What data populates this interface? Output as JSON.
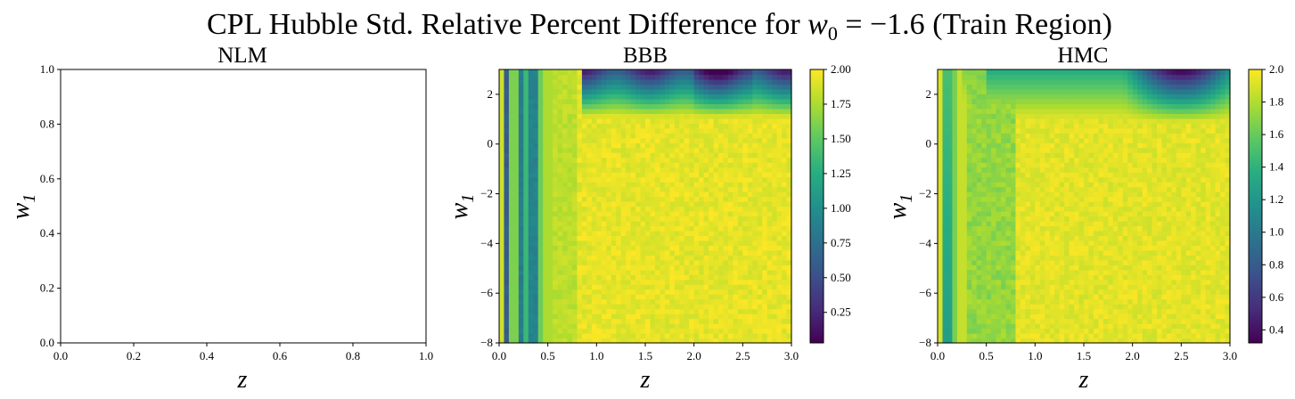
{
  "figure": {
    "title_prefix": "CPL Hubble Std. Relative Percent Difference for ",
    "title_math_w": "w",
    "title_math_sub": "0",
    "title_math_value": " = −1.6",
    "title_suffix": " (Train Region)"
  },
  "chart_data": [
    {
      "type": "heatmap",
      "title": "NLM",
      "xlabel": "z",
      "ylabel_main": "w",
      "ylabel_sub": "1",
      "xlim": [
        0.0,
        1.0
      ],
      "ylim": [
        0.0,
        1.0
      ],
      "xticks": [
        "0.0",
        "0.2",
        "0.4",
        "0.6",
        "0.8",
        "1.0"
      ],
      "yticks": [
        "0.0",
        "0.2",
        "0.4",
        "0.6",
        "0.8",
        "1.0"
      ],
      "empty": true
    },
    {
      "type": "heatmap",
      "title": "BBB",
      "xlabel": "z",
      "ylabel_main": "w",
      "ylabel_sub": "1",
      "xlim": [
        0.0,
        3.0
      ],
      "ylim": [
        -8,
        3
      ],
      "xticks": [
        "0.0",
        "0.5",
        "1.0",
        "1.5",
        "2.0",
        "2.5",
        "3.0"
      ],
      "yticks": [
        "−8",
        "−6",
        "−4",
        "−2",
        "0",
        "2"
      ],
      "colormap": "viridis",
      "colorbar_range": [
        0.03,
        2.0
      ],
      "colorbar_ticks": [
        "0.25",
        "0.50",
        "0.75",
        "1.00",
        "1.25",
        "1.50",
        "1.75",
        "2.00"
      ],
      "features": "vertical low-value stripes near z<0.4; dark dips along top edge (w1>1.5) for z>0.9"
    },
    {
      "type": "heatmap",
      "title": "HMC",
      "xlabel": "z",
      "ylabel_main": "w",
      "ylabel_sub": "1",
      "xlim": [
        0.0,
        3.0
      ],
      "ylim": [
        -8,
        3
      ],
      "xticks": [
        "0.0",
        "0.5",
        "1.0",
        "1.5",
        "2.0",
        "2.5",
        "3.0"
      ],
      "yticks": [
        "−8",
        "−6",
        "−4",
        "−2",
        "0",
        "2"
      ],
      "colormap": "viridis",
      "colorbar_range": [
        0.32,
        2.0
      ],
      "colorbar_ticks": [
        "0.4",
        "0.6",
        "0.8",
        "1.0",
        "1.2",
        "1.4",
        "1.6",
        "1.8",
        "2.0"
      ],
      "features": "teal strip near z~0.1; dark blob at top around z~2.5, w1~2.8"
    }
  ]
}
